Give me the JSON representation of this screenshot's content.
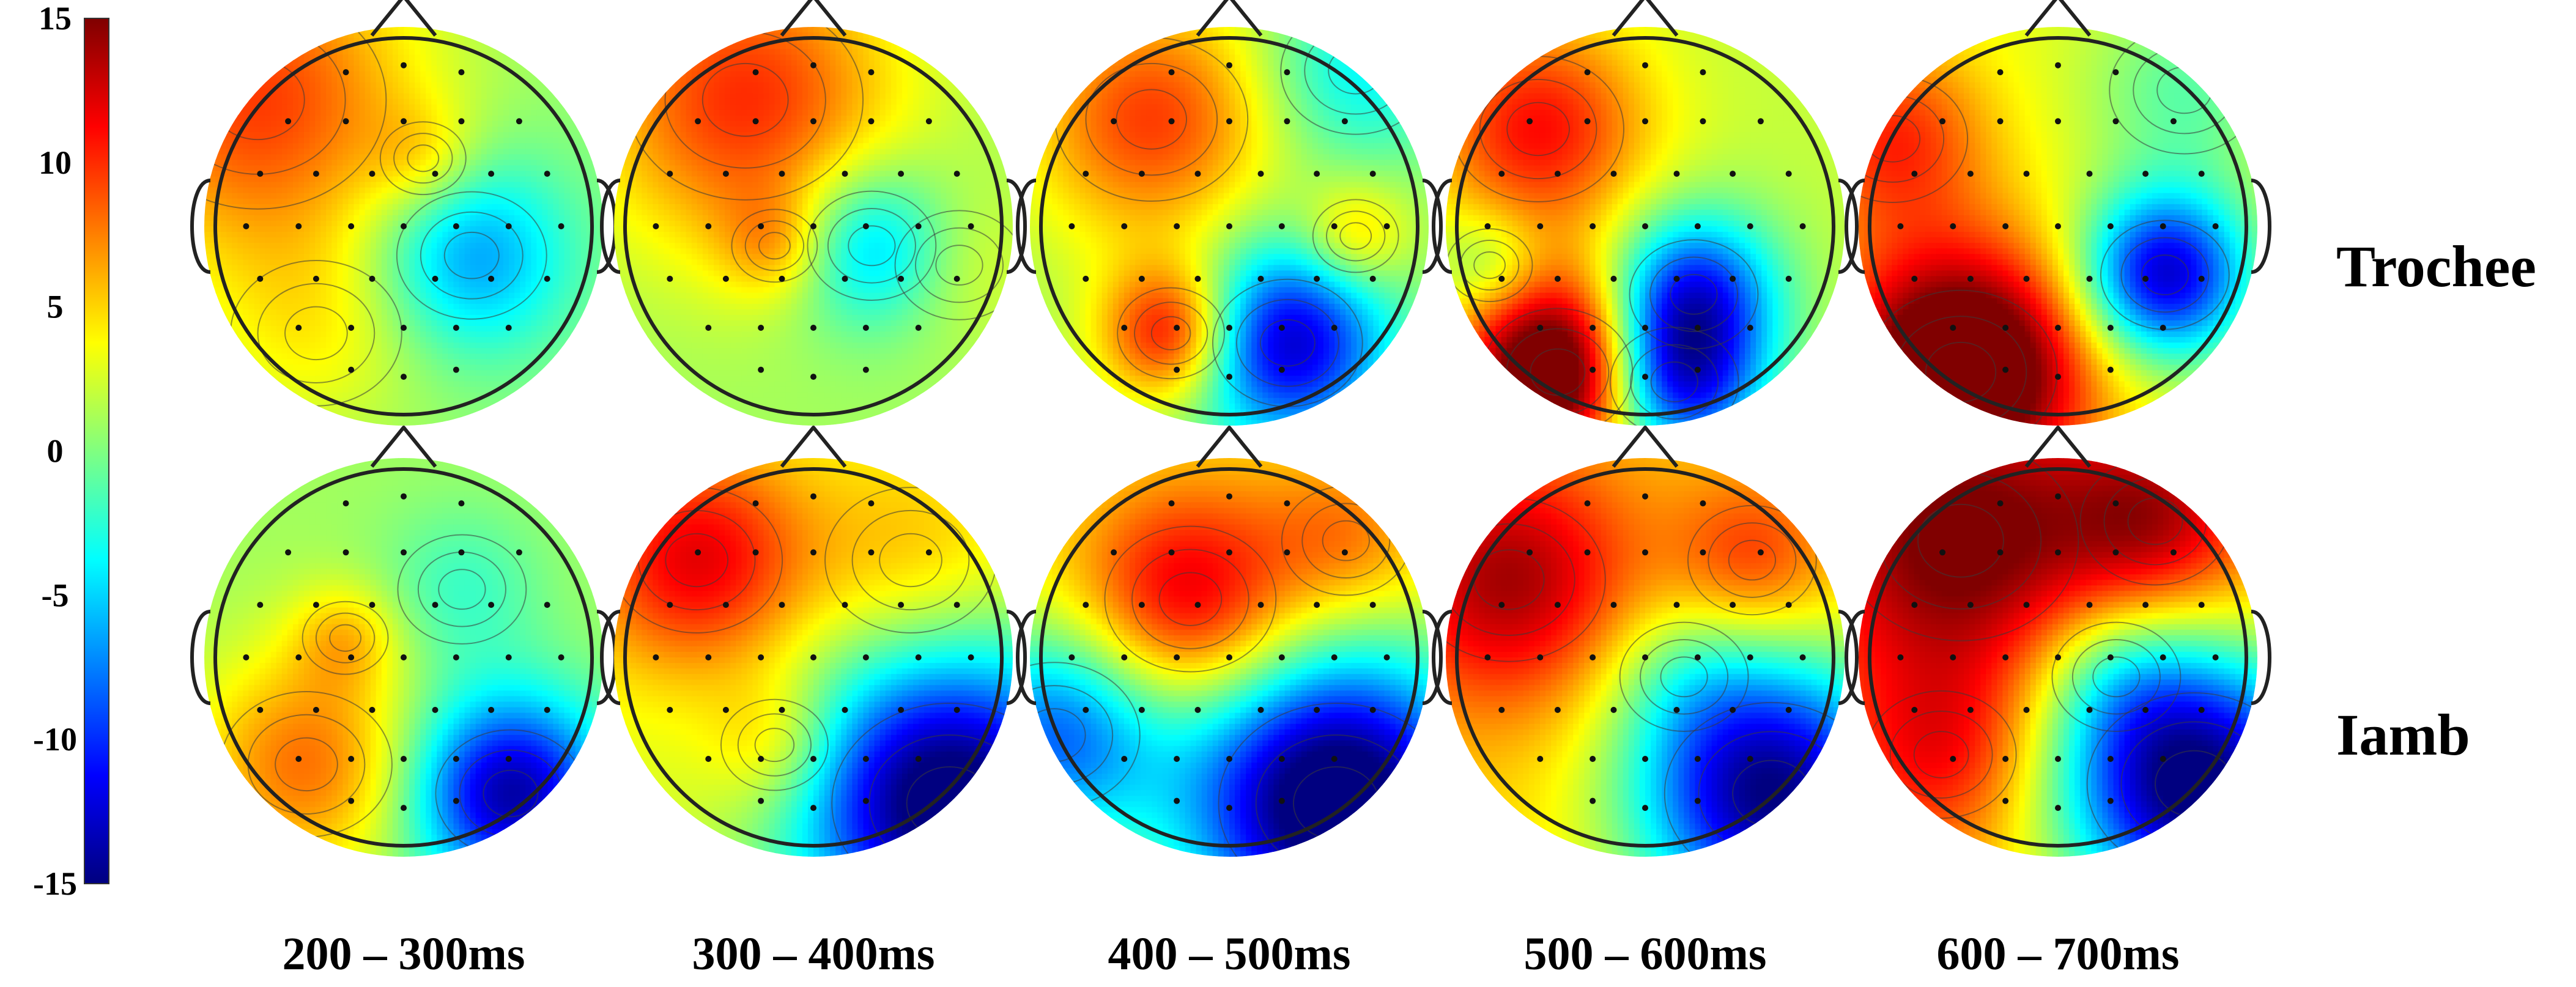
{
  "colorbar": {
    "ticks": [
      15,
      10,
      5,
      0,
      -5,
      -10,
      -15
    ],
    "range": [
      -15,
      15
    ],
    "colormap": "jet",
    "colors": [
      "#00007f",
      "#0000ff",
      "#0080ff",
      "#00ffff",
      "#80ff80",
      "#ffff00",
      "#ff8000",
      "#ff0000",
      "#7f0000"
    ]
  },
  "rows": [
    {
      "label": "Trochee"
    },
    {
      "label": "Iamb"
    }
  ],
  "time_windows": [
    "200 – 300ms",
    "300 – 400ms",
    "400 – 500ms",
    "500 – 600ms",
    "600 – 700ms"
  ],
  "maps": [
    [
      {
        "base": 0.5,
        "blobs": [
          [
            -0.75,
            -0.65,
            0.6,
            9.0
          ],
          [
            0.35,
            0.15,
            0.35,
            -7.5
          ],
          [
            0.1,
            -0.35,
            0.2,
            3.0
          ],
          [
            -0.45,
            0.55,
            0.4,
            3.0
          ]
        ]
      },
      {
        "base": 1.0,
        "blobs": [
          [
            -0.35,
            -0.65,
            0.55,
            9.0
          ],
          [
            0.3,
            0.1,
            0.3,
            -7.5
          ],
          [
            -0.2,
            0.1,
            0.2,
            4.0
          ],
          [
            0.75,
            0.2,
            0.3,
            2.0
          ]
        ]
      },
      {
        "base": 1.0,
        "blobs": [
          [
            -0.4,
            -0.55,
            0.45,
            8.5
          ],
          [
            0.65,
            -0.8,
            0.35,
            -5.0
          ],
          [
            -0.3,
            0.55,
            0.25,
            11.0
          ],
          [
            0.3,
            0.6,
            0.35,
            -14.0
          ],
          [
            0.65,
            0.05,
            0.2,
            5.0
          ]
        ]
      },
      {
        "base": 2.0,
        "blobs": [
          [
            -0.55,
            -0.5,
            0.4,
            9.0
          ],
          [
            0.25,
            0.35,
            0.3,
            -12.0
          ],
          [
            -0.45,
            0.75,
            0.35,
            18.0
          ],
          [
            0.15,
            0.8,
            0.3,
            -14.0
          ],
          [
            -0.8,
            0.2,
            0.2,
            -4.0
          ]
        ]
      },
      {
        "base": 3.0,
        "blobs": [
          [
            -0.85,
            -0.45,
            0.35,
            7.0
          ],
          [
            0.55,
            0.25,
            0.3,
            -16.0
          ],
          [
            -0.5,
            0.75,
            0.45,
            18.0
          ],
          [
            0.65,
            -0.7,
            0.35,
            -4.0
          ]
        ]
      }
    ],
    [
      {
        "base": 1.0,
        "blobs": [
          [
            -0.5,
            0.55,
            0.4,
            7.0
          ],
          [
            0.55,
            0.7,
            0.35,
            -15.0
          ],
          [
            -0.3,
            -0.1,
            0.2,
            4.0
          ],
          [
            0.3,
            -0.35,
            0.3,
            -3.0
          ]
        ]
      },
      {
        "base": 3.0,
        "blobs": [
          [
            -0.6,
            -0.5,
            0.4,
            9.0
          ],
          [
            0.7,
            0.75,
            0.55,
            -20.0
          ],
          [
            -0.2,
            0.45,
            0.25,
            4.0
          ],
          [
            0.5,
            -0.5,
            0.4,
            3.0
          ]
        ]
      },
      {
        "base": 4.0,
        "blobs": [
          [
            -0.2,
            -0.3,
            0.4,
            9.0
          ],
          [
            0.55,
            0.75,
            0.55,
            -22.0
          ],
          [
            -0.9,
            0.4,
            0.4,
            -12.0
          ],
          [
            0.6,
            -0.6,
            0.3,
            4.0
          ]
        ]
      },
      {
        "base": 5.0,
        "blobs": [
          [
            -0.7,
            -0.4,
            0.45,
            9.0
          ],
          [
            0.65,
            0.7,
            0.5,
            -20.0
          ],
          [
            0.55,
            -0.5,
            0.3,
            5.0
          ],
          [
            0.2,
            0.1,
            0.3,
            -3.0
          ]
        ]
      },
      {
        "base": 6.0,
        "blobs": [
          [
            -0.5,
            -0.6,
            0.55,
            10.0
          ],
          [
            0.7,
            0.65,
            0.5,
            -22.0
          ],
          [
            0.5,
            -0.7,
            0.35,
            7.0
          ],
          [
            0.3,
            0.1,
            0.3,
            -4.0
          ],
          [
            -0.6,
            0.5,
            0.35,
            5.0
          ]
        ]
      }
    ]
  ]
}
